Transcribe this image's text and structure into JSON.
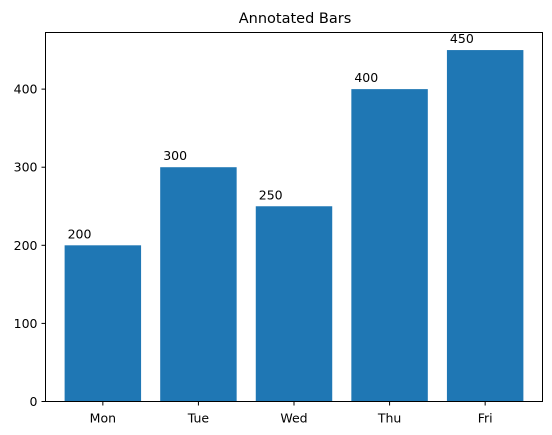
{
  "chart_data": {
    "type": "bar",
    "title": "Annotated Bars",
    "xlabel": "",
    "ylabel": "",
    "categories": [
      "Mon",
      "Tue",
      "Wed",
      "Thu",
      "Fri"
    ],
    "values": [
      200,
      300,
      250,
      400,
      450
    ],
    "data_labels": [
      "200",
      "300",
      "250",
      "400",
      "450"
    ],
    "ylim": [
      0,
      472.5
    ],
    "yticks": [
      0,
      100,
      200,
      300,
      400
    ],
    "ytick_labels": [
      "0",
      "100",
      "200",
      "300",
      "400"
    ],
    "grid": false,
    "bar_color": "#1f77b4"
  }
}
